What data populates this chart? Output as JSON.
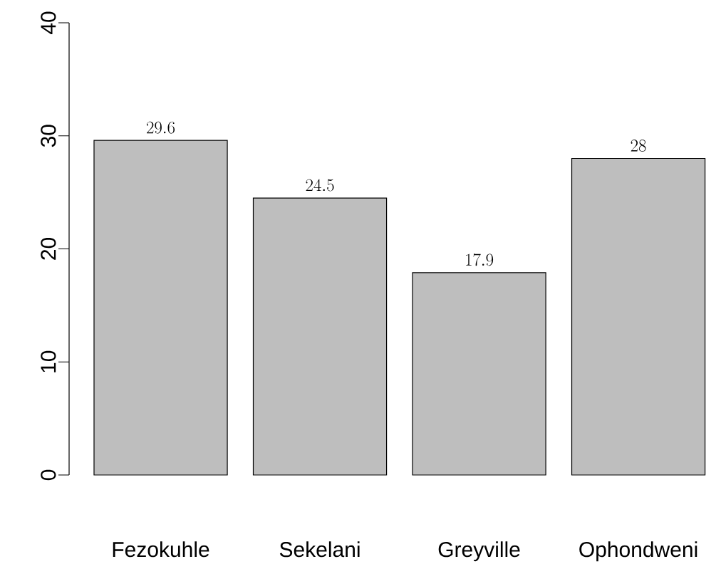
{
  "chart_data": {
    "type": "bar",
    "categories": [
      "Fezokuhle",
      "Sekelani",
      "Greyville",
      "Ophondweni"
    ],
    "values": [
      29.6,
      24.5,
      17.9,
      28
    ],
    "color": "#bebebe",
    "ylim": [
      0,
      40
    ],
    "yticks": [
      0,
      10,
      20,
      30,
      40
    ],
    "data_labels": true
  }
}
